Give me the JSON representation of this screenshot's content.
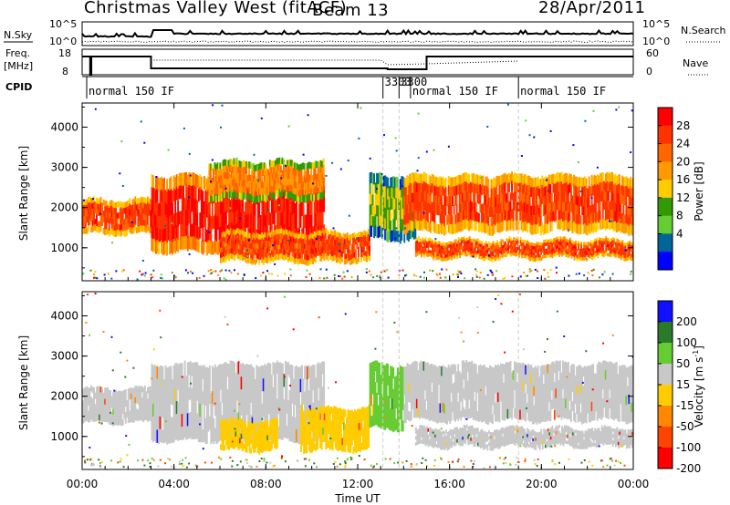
{
  "header": {
    "station": "Christmas Valley West (fitACF)",
    "beam": "Beam 13",
    "date": "28/Apr/2011"
  },
  "strip_labels": {
    "nsky": "N.Sky",
    "nsky_ticks": [
      "10^5",
      "10^0"
    ],
    "nsearch": "N.Search",
    "nsearch_ticks": [
      "10^5",
      "10^0"
    ],
    "freq_label": [
      "Freq.",
      "[MHz]"
    ],
    "freq_ticks": [
      "18",
      "8"
    ],
    "nave": "Nave",
    "nave_ticks": [
      "60",
      "0"
    ],
    "cpid": "CPID"
  },
  "cpid_segments": [
    {
      "label": "normal 150 IF",
      "start_hour": 0.2
    },
    {
      "label": "3303",
      "start_hour": 13.1
    },
    {
      "label": "3300",
      "start_hour": 13.8
    },
    {
      "label": "normal 150 IF",
      "start_hour": 14.3
    },
    {
      "label": "normal 150 IF",
      "start_hour": 19.0
    }
  ],
  "axes": {
    "xlabel": "Time UT",
    "ylabel": "Slant Range [km]",
    "x_ticks": [
      "00:00",
      "04:00",
      "08:00",
      "12:00",
      "16:00",
      "20:00",
      "00:00"
    ],
    "y_ticks": [
      "1000",
      "2000",
      "3000",
      "4000"
    ],
    "xlim_hours": [
      0,
      24
    ],
    "ylim_km": [
      180,
      4600
    ]
  },
  "colorbars": {
    "power": {
      "label": "Power [dB]",
      "ticks": [
        "28",
        "24",
        "20",
        "16",
        "12",
        "8",
        "4"
      ],
      "colors": [
        "#ff0000",
        "#ff3300",
        "#ff6600",
        "#ff9900",
        "#ffcc00",
        "#339900",
        "#66cc33",
        "#006699",
        "#0000ff"
      ]
    },
    "velocity": {
      "label": "Velocity [m s",
      "label_sup": "-1",
      "label_end": "]",
      "ticks": [
        "200",
        "100",
        "50",
        "15",
        "-15",
        "-50",
        "-100",
        "-200"
      ],
      "colors": [
        "#1010ff",
        "#2a7a2a",
        "#66cc33",
        "#c8c8c8",
        "#ffcc00",
        "#ff8800",
        "#ff4400",
        "#ff0000"
      ]
    }
  },
  "chart_data": {
    "type": "heatmap",
    "title": "Christmas Valley West (fitACF) Beam 13 28/Apr/2011",
    "xlabel": "Time UT",
    "ylabel": "Slant Range [km]",
    "xlim": [
      "00:00",
      "24:00"
    ],
    "ylim": [
      180,
      4600
    ],
    "power_bands": [
      {
        "t_start": 0.0,
        "t_end": 3.0,
        "r_low": 1350,
        "r_high": 2200,
        "power_db": 24
      },
      {
        "t_start": 3.0,
        "t_end": 10.5,
        "r_low": 900,
        "r_high": 2800,
        "power_db": 26
      },
      {
        "t_start": 6.0,
        "t_end": 12.5,
        "r_low": 650,
        "r_high": 1400,
        "power_db": 24
      },
      {
        "t_start": 5.5,
        "t_end": 10.5,
        "r_low": 2200,
        "r_high": 3150,
        "power_db": 20
      },
      {
        "t_start": 12.5,
        "t_end": 14.5,
        "r_low": 1200,
        "r_high": 2800,
        "power_db": 14
      },
      {
        "t_start": 14.0,
        "t_end": 24.0,
        "r_low": 1400,
        "r_high": 2800,
        "power_db": 24
      },
      {
        "t_start": 14.5,
        "t_end": 24.0,
        "r_low": 750,
        "r_high": 1200,
        "power_db": 24
      }
    ],
    "velocity_bands": [
      {
        "t_start": 0.0,
        "t_end": 3.0,
        "r_low": 1350,
        "r_high": 2200,
        "velocity": 0
      },
      {
        "t_start": 3.0,
        "t_end": 10.5,
        "r_low": 900,
        "r_high": 2800,
        "velocity": 0
      },
      {
        "t_start": 6.0,
        "t_end": 8.5,
        "r_low": 650,
        "r_high": 1400,
        "velocity": -30
      },
      {
        "t_start": 9.5,
        "t_end": 12.5,
        "r_low": 650,
        "r_high": 1700,
        "velocity": -30
      },
      {
        "t_start": 12.5,
        "t_end": 14.0,
        "r_low": 1200,
        "r_high": 2800,
        "velocity": 40
      },
      {
        "t_start": 14.0,
        "t_end": 24.0,
        "r_low": 1400,
        "r_high": 2800,
        "velocity": 0
      },
      {
        "t_start": 14.5,
        "t_end": 24.0,
        "r_low": 750,
        "r_high": 1200,
        "velocity": 0
      }
    ]
  }
}
